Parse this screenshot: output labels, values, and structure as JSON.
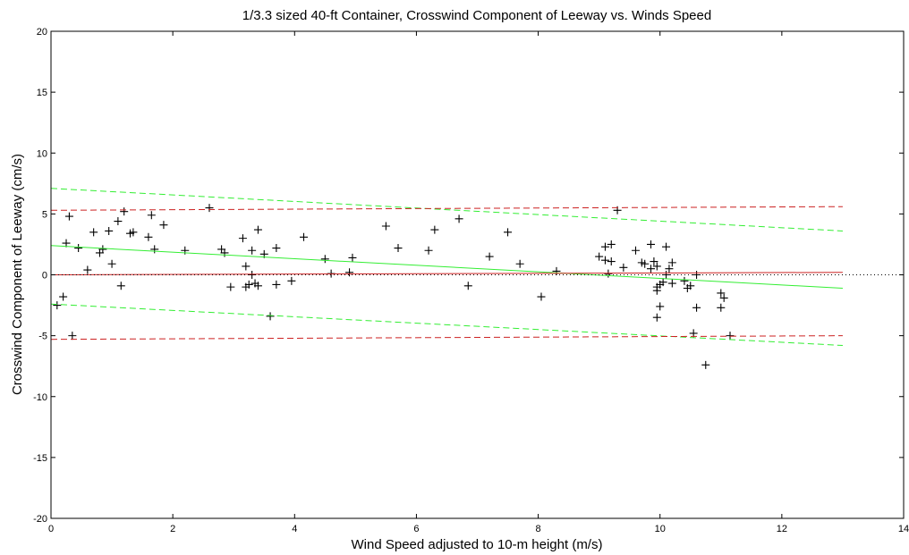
{
  "chart_data": {
    "type": "scatter",
    "title": "1/3.3 sized 40-ft Container, Crosswind Component of Leeway vs. Winds Speed",
    "xlabel": "Wind Speed adjusted to 10-m height (m/s)",
    "ylabel": "Crosswind Component of Leeway (cm/s)",
    "xlim": [
      0,
      14
    ],
    "ylim": [
      -20,
      20
    ],
    "xticks": [
      0,
      2,
      4,
      6,
      8,
      10,
      12,
      14
    ],
    "yticks": [
      -20,
      -15,
      -10,
      -5,
      0,
      5,
      10,
      15,
      20
    ],
    "grid": false,
    "legend": "none",
    "colors": {
      "points": "#000000",
      "green_fit": "#33ee33",
      "red_fit": "#cc2222",
      "zero_line": "#000000"
    },
    "series": [
      {
        "style": "markers-plus",
        "points": [
          [
            0.1,
            -2.5
          ],
          [
            0.2,
            -1.8
          ],
          [
            0.25,
            2.6
          ],
          [
            0.3,
            4.8
          ],
          [
            0.35,
            -5.0
          ],
          [
            0.45,
            2.2
          ],
          [
            0.6,
            0.4
          ],
          [
            0.7,
            3.5
          ],
          [
            0.8,
            1.8
          ],
          [
            0.85,
            2.1
          ],
          [
            0.95,
            3.6
          ],
          [
            1.0,
            0.9
          ],
          [
            1.1,
            4.4
          ],
          [
            1.15,
            -0.9
          ],
          [
            1.2,
            5.2
          ],
          [
            1.3,
            3.4
          ],
          [
            1.35,
            3.5
          ],
          [
            1.6,
            3.1
          ],
          [
            1.65,
            4.9
          ],
          [
            1.7,
            2.1
          ],
          [
            1.85,
            4.1
          ],
          [
            2.2,
            2.0
          ],
          [
            2.6,
            5.5
          ],
          [
            2.8,
            2.1
          ],
          [
            2.85,
            1.8
          ],
          [
            2.95,
            -1.0
          ],
          [
            3.15,
            3.0
          ],
          [
            3.2,
            0.7
          ],
          [
            3.2,
            -1.0
          ],
          [
            3.25,
            -0.8
          ],
          [
            3.3,
            0.0
          ],
          [
            3.3,
            2.0
          ],
          [
            3.35,
            -0.7
          ],
          [
            3.4,
            3.7
          ],
          [
            3.4,
            -0.9
          ],
          [
            3.5,
            1.7
          ],
          [
            3.6,
            -3.4
          ],
          [
            3.7,
            2.2
          ],
          [
            3.7,
            -0.8
          ],
          [
            3.95,
            -0.5
          ],
          [
            4.15,
            3.1
          ],
          [
            4.5,
            1.3
          ],
          [
            4.6,
            0.1
          ],
          [
            4.9,
            0.2
          ],
          [
            4.95,
            1.4
          ],
          [
            5.5,
            4.0
          ],
          [
            5.7,
            2.2
          ],
          [
            6.2,
            2.0
          ],
          [
            6.3,
            3.7
          ],
          [
            6.7,
            4.6
          ],
          [
            6.85,
            -0.9
          ],
          [
            7.2,
            1.5
          ],
          [
            7.5,
            3.5
          ],
          [
            7.7,
            0.9
          ],
          [
            8.05,
            -1.8
          ],
          [
            8.3,
            0.3
          ],
          [
            9.0,
            1.5
          ],
          [
            9.1,
            1.2
          ],
          [
            9.1,
            2.3
          ],
          [
            9.15,
            0.1
          ],
          [
            9.2,
            2.5
          ],
          [
            9.2,
            1.1
          ],
          [
            9.3,
            5.3
          ],
          [
            9.4,
            0.6
          ],
          [
            9.6,
            2.0
          ],
          [
            9.7,
            1.0
          ],
          [
            9.75,
            0.9
          ],
          [
            9.85,
            2.5
          ],
          [
            9.85,
            0.5
          ],
          [
            9.9,
            1.1
          ],
          [
            9.95,
            0.7
          ],
          [
            9.95,
            -1.0
          ],
          [
            9.95,
            -1.3
          ],
          [
            9.95,
            -3.5
          ],
          [
            10.0,
            -2.6
          ],
          [
            10.0,
            -0.8
          ],
          [
            10.05,
            -0.6
          ],
          [
            10.1,
            2.3
          ],
          [
            10.1,
            0.0
          ],
          [
            10.15,
            0.5
          ],
          [
            10.2,
            1.0
          ],
          [
            10.2,
            -0.7
          ],
          [
            10.4,
            -0.5
          ],
          [
            10.45,
            -1.1
          ],
          [
            10.5,
            -0.9
          ],
          [
            10.55,
            -4.8
          ],
          [
            10.6,
            -2.7
          ],
          [
            10.6,
            0.0
          ],
          [
            10.75,
            -7.4
          ],
          [
            11.0,
            -1.5
          ],
          [
            11.0,
            -2.7
          ],
          [
            11.05,
            -1.9
          ],
          [
            11.15,
            -5.0
          ]
        ]
      },
      {
        "style": "line-solid",
        "color": "green_fit",
        "x": [
          0,
          13
        ],
        "y": [
          2.4,
          -1.1
        ]
      },
      {
        "style": "line-dashed",
        "color": "green_fit",
        "x": [
          0,
          13
        ],
        "y": [
          7.1,
          3.6
        ]
      },
      {
        "style": "line-dashed",
        "color": "green_fit",
        "x": [
          0,
          13
        ],
        "y": [
          -2.4,
          -5.8
        ]
      },
      {
        "style": "line-solid",
        "color": "red_fit",
        "x": [
          0,
          13
        ],
        "y": [
          0.0,
          0.2
        ]
      },
      {
        "style": "line-dashed",
        "color": "red_fit",
        "x": [
          0,
          13
        ],
        "y": [
          5.3,
          5.6
        ]
      },
      {
        "style": "line-dashed",
        "color": "red_fit",
        "x": [
          0,
          13
        ],
        "y": [
          -5.3,
          -5.0
        ]
      },
      {
        "style": "line-dotted",
        "color": "zero_line",
        "x": [
          0,
          14
        ],
        "y": [
          0,
          0
        ]
      }
    ]
  }
}
